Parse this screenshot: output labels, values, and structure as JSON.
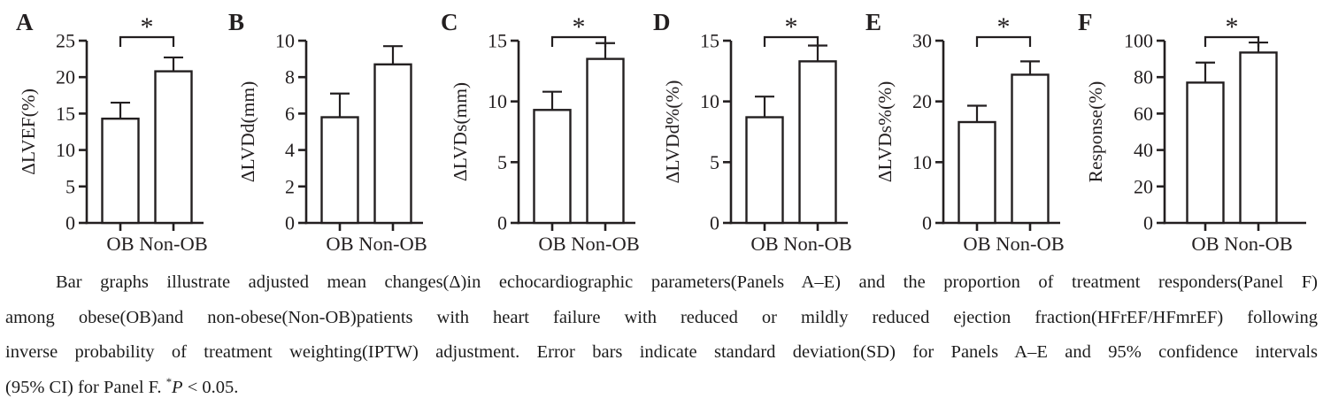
{
  "figure": {
    "background": "#ffffff",
    "ink": "#231f20",
    "bar_fill": "#ffffff",
    "bar_stroke": "#231f20",
    "significance_marker": "*"
  },
  "chart_data": [
    {
      "type": "bar",
      "panel": "A",
      "ylabel": "ΔLVEF(%)",
      "categories": [
        "OB",
        "Non-OB"
      ],
      "values": [
        14.3,
        20.8
      ],
      "errors_upper": [
        2.2,
        1.9
      ],
      "error_meaning": "SD",
      "ylim": [
        0,
        25
      ],
      "yticks": [
        0,
        5,
        10,
        15,
        20,
        25
      ],
      "significance": "*",
      "grid": false
    },
    {
      "type": "bar",
      "panel": "B",
      "ylabel": "ΔLVDd(mm)",
      "categories": [
        "OB",
        "Non-OB"
      ],
      "values": [
        5.8,
        8.7
      ],
      "errors_upper": [
        1.3,
        1.0
      ],
      "error_meaning": "SD",
      "ylim": [
        0,
        10
      ],
      "yticks": [
        0,
        2,
        4,
        6,
        8,
        10
      ],
      "significance": "",
      "grid": false
    },
    {
      "type": "bar",
      "panel": "C",
      "ylabel": "ΔLVDs(mm)",
      "categories": [
        "OB",
        "Non-OB"
      ],
      "values": [
        9.3,
        13.5
      ],
      "errors_upper": [
        1.5,
        1.3
      ],
      "error_meaning": "SD",
      "ylim": [
        0,
        15
      ],
      "yticks": [
        0,
        5,
        10,
        15
      ],
      "significance": "*",
      "grid": false
    },
    {
      "type": "bar",
      "panel": "D",
      "ylabel": "ΔLVDd%(%)",
      "categories": [
        "OB",
        "Non-OB"
      ],
      "values": [
        8.7,
        13.3
      ],
      "errors_upper": [
        1.7,
        1.3
      ],
      "error_meaning": "SD",
      "ylim": [
        0,
        15
      ],
      "yticks": [
        0,
        5,
        10,
        15
      ],
      "significance": "*",
      "grid": false
    },
    {
      "type": "bar",
      "panel": "E",
      "ylabel": "ΔLVDs%(%)",
      "categories": [
        "OB",
        "Non-OB"
      ],
      "values": [
        16.6,
        24.4
      ],
      "errors_upper": [
        2.7,
        2.2
      ],
      "error_meaning": "SD",
      "ylim": [
        0,
        30
      ],
      "yticks": [
        0,
        10,
        20,
        30
      ],
      "significance": "*",
      "grid": false
    },
    {
      "type": "bar",
      "panel": "F",
      "ylabel": "Response(%)",
      "categories": [
        "OB",
        "Non-OB"
      ],
      "values": [
        77,
        93.5
      ],
      "errors_upper": [
        11,
        5.5
      ],
      "error_meaning": "95% CI",
      "ylim": [
        0,
        100
      ],
      "yticks": [
        0,
        20,
        40,
        60,
        80,
        100
      ],
      "significance": "*",
      "grid": false
    }
  ],
  "caption": {
    "lines": [
      "Bar graphs illustrate adjusted mean changes(Δ)in echocardiographic parameters(Panels A–E) and the proportion of treatment responders(Panel F)",
      "among obese(OB)and non-obese(Non-OB)patients with heart failure with reduced or mildly reduced ejection fraction(HFrEF/HFmrEF) following",
      "inverse probability of treatment weighting(IPTW) adjustment. Error bars indicate standard deviation(SD) for Panels A–E and 95% confidence intervals"
    ],
    "line4": {
      "prefix": "(95% CI) for Panel F. ",
      "sup": "*",
      "italic": "P",
      "rest": " < 0.05."
    }
  }
}
